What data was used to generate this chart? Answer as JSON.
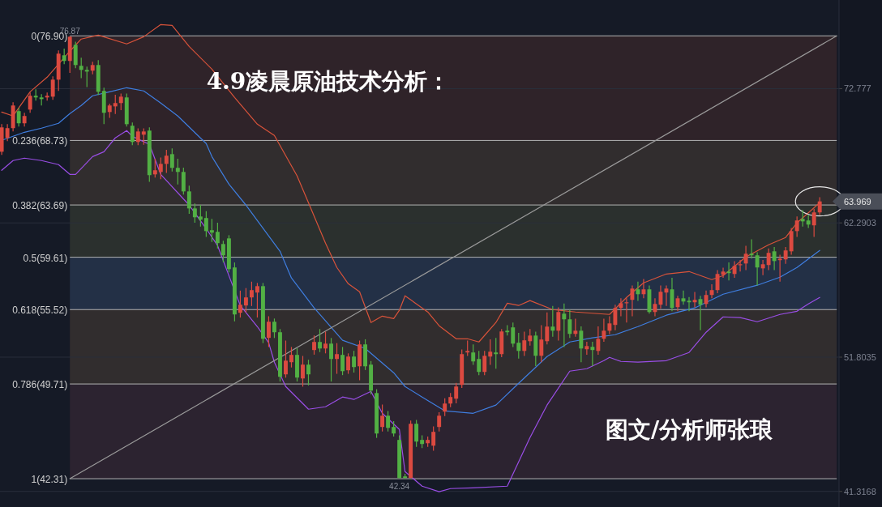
{
  "chart_data": {
    "type": "candlestick",
    "title": "4.9凌晨原油技术分析：",
    "categories": [
      null,
      null,
      null,
      null,
      null,
      null,
      null,
      null,
      null,
      null,
      null,
      null,
      null,
      null,
      null,
      null,
      null,
      null,
      null,
      null,
      null,
      null,
      null,
      null,
      null,
      null,
      null,
      null,
      null,
      null,
      null,
      null,
      null,
      null,
      null,
      null,
      null,
      null,
      null,
      null,
      null,
      null,
      null,
      null,
      null,
      null,
      null,
      null,
      null,
      null,
      null,
      null,
      null,
      null,
      null,
      null,
      null,
      null,
      null,
      null,
      null,
      null,
      null,
      null,
      null,
      null,
      null,
      null,
      null,
      null,
      null,
      null,
      null,
      null,
      null,
      null,
      null,
      null,
      null,
      null,
      null,
      null,
      null,
      null,
      null,
      null,
      null,
      null,
      null,
      null,
      null,
      null,
      null,
      null,
      null,
      null,
      null,
      null,
      null,
      null,
      null,
      null,
      null,
      null,
      null,
      null,
      null,
      null,
      null,
      null,
      null,
      null,
      null,
      null,
      null,
      null,
      null,
      null,
      null,
      null,
      null,
      null,
      null,
      null,
      null,
      null,
      null,
      null,
      null,
      null,
      null,
      null,
      null,
      null,
      null,
      null,
      null,
      null,
      null,
      null,
      null,
      null,
      null,
      null,
      null,
      null,
      null,
      null
    ],
    "ohlc": [
      [
        67.85,
        70.0,
        67.6,
        69.75
      ],
      [
        68.93,
        70.0,
        68.68,
        69.69
      ],
      [
        69.69,
        71.71,
        69.44,
        71.46
      ],
      [
        71.02,
        71.27,
        69.82,
        70.07
      ],
      [
        70.07,
        70.89,
        69.82,
        70.64
      ],
      [
        71.14,
        72.47,
        70.89,
        72.22
      ],
      [
        72.22,
        72.72,
        71.84,
        72.09
      ],
      [
        72.09,
        72.34,
        71.46,
        71.96
      ],
      [
        72.09,
        72.47,
        71.84,
        72.22
      ],
      [
        72.15,
        73.73,
        71.9,
        73.48
      ],
      [
        73.48,
        75.76,
        72.6,
        75.51
      ],
      [
        75.38,
        75.9,
        74.69,
        74.94
      ],
      [
        74.94,
        76.87,
        74.0,
        76.83
      ],
      [
        76.2,
        76.45,
        74.37,
        74.62
      ],
      [
        74.56,
        75.2,
        73.6,
        74.24
      ],
      [
        74.24,
        74.5,
        72.9,
        74.11
      ],
      [
        74.18,
        74.87,
        73.9,
        74.62
      ],
      [
        74.62,
        75.0,
        72.28,
        72.53
      ],
      [
        72.6,
        72.85,
        70.0,
        70.89
      ],
      [
        70.95,
        71.6,
        70.5,
        71.46
      ],
      [
        71.39,
        72.3,
        70.8,
        71.65
      ],
      [
        71.65,
        72.4,
        71.1,
        72.15
      ],
      [
        72.09,
        72.4,
        69.82,
        70.0
      ],
      [
        69.88,
        70.13,
        68.36,
        68.61
      ],
      [
        68.61,
        69.68,
        68.36,
        69.43
      ],
      [
        69.18,
        69.68,
        68.4,
        69.43
      ],
      [
        69.5,
        69.75,
        65.5,
        66.02
      ],
      [
        66.08,
        67.3,
        65.83,
        66.4
      ],
      [
        66.27,
        67.4,
        65.7,
        66.9
      ],
      [
        66.9,
        68.0,
        66.2,
        67.54
      ],
      [
        67.66,
        68.1,
        66.3,
        66.59
      ],
      [
        66.59,
        67.3,
        65.3,
        66.27
      ],
      [
        66.27,
        66.6,
        64.5,
        64.75
      ],
      [
        64.75,
        65.2,
        63.0,
        63.42
      ],
      [
        63.42,
        63.8,
        62.3,
        62.73
      ],
      [
        62.79,
        63.7,
        62.0,
        62.54
      ],
      [
        62.67,
        63.2,
        61.2,
        61.65
      ],
      [
        61.72,
        62.6,
        60.8,
        61.53
      ],
      [
        61.59,
        62.3,
        60.3,
        60.71
      ],
      [
        60.64,
        60.89,
        59.2,
        59.76
      ],
      [
        61.08,
        61.33,
        58.43,
        58.68
      ],
      [
        58.81,
        59.2,
        54.6,
        55.14
      ],
      [
        55.27,
        57.0,
        54.9,
        55.9
      ],
      [
        55.84,
        57.2,
        55.3,
        56.47
      ],
      [
        56.47,
        57.7,
        55.8,
        57.04
      ],
      [
        56.85,
        57.6,
        54.9,
        57.35
      ],
      [
        57.35,
        57.6,
        52.9,
        53.24
      ],
      [
        53.31,
        55.0,
        52.6,
        54.57
      ],
      [
        54.57,
        54.82,
        53.3,
        53.75
      ],
      [
        53.75,
        54.0,
        49.9,
        50.27
      ],
      [
        50.46,
        53.1,
        50.2,
        51.53
      ],
      [
        51.41,
        52.6,
        51.0,
        51.98
      ],
      [
        51.98,
        52.5,
        49.9,
        50.21
      ],
      [
        50.14,
        51.9,
        49.5,
        51.22
      ],
      [
        51.22,
        51.6,
        49.6,
        50.46
      ],
      [
        52.36,
        53.5,
        52.0,
        52.99
      ],
      [
        52.99,
        54.0,
        52.2,
        52.48
      ],
      [
        52.48,
        53.8,
        52.1,
        52.86
      ],
      [
        52.86,
        53.3,
        49.9,
        51.66
      ],
      [
        51.66,
        52.9,
        50.5,
        52.04
      ],
      [
        51.98,
        52.6,
        50.4,
        50.71
      ],
      [
        50.78,
        52.1,
        50.5,
        51.85
      ],
      [
        51.85,
        52.3,
        50.6,
        51.03
      ],
      [
        51.09,
        53.1,
        50.0,
        52.8
      ],
      [
        52.8,
        53.2,
        50.8,
        51.09
      ],
      [
        51.22,
        51.5,
        48.9,
        49.19
      ],
      [
        49.0,
        49.3,
        45.5,
        45.84
      ],
      [
        46.35,
        48.1,
        46.0,
        47.23
      ],
      [
        47.23,
        47.6,
        46.0,
        46.28
      ],
      [
        46.35,
        46.8,
        45.6,
        45.84
      ],
      [
        45.34,
        45.7,
        42.34,
        42.36
      ],
      [
        42.49,
        42.7,
        42.36,
        42.36
      ],
      [
        42.36,
        46.85,
        42.36,
        46.6
      ],
      [
        46.6,
        46.9,
        44.8,
        45.21
      ],
      [
        45.34,
        45.7,
        44.7,
        45.02
      ],
      [
        45.08,
        45.6,
        44.8,
        45.34
      ],
      [
        44.89,
        46.4,
        44.5,
        45.97
      ],
      [
        46.35,
        47.5,
        46.0,
        47.23
      ],
      [
        47.55,
        48.6,
        47.2,
        48.18
      ],
      [
        48.18,
        49.0,
        47.9,
        48.69
      ],
      [
        48.56,
        49.8,
        48.2,
        49.51
      ],
      [
        49.64,
        52.4,
        49.4,
        52.04
      ],
      [
        52.17,
        53.1,
        51.9,
        52.29
      ],
      [
        52.17,
        52.8,
        51.2,
        51.47
      ],
      [
        51.66,
        52.3,
        50.4,
        50.65
      ],
      [
        50.65,
        52.3,
        50.4,
        51.91
      ],
      [
        51.85,
        53.2,
        51.2,
        52.23
      ],
      [
        52.17,
        53.3,
        50.9,
        52.04
      ],
      [
        52.04,
        54.0,
        51.8,
        53.81
      ],
      [
        53.87,
        54.3,
        53.5,
        53.75
      ],
      [
        54.13,
        54.5,
        52.6,
        52.86
      ],
      [
        52.93,
        53.7,
        51.7,
        52.29
      ],
      [
        52.29,
        53.8,
        51.9,
        53.12
      ],
      [
        53.05,
        54.0,
        52.7,
        53.49
      ],
      [
        53.49,
        53.8,
        51.1,
        51.91
      ],
      [
        51.91,
        54.3,
        51.4,
        53.18
      ],
      [
        53.05,
        55.3,
        52.8,
        54.19
      ],
      [
        54.19,
        55.8,
        53.4,
        53.87
      ],
      [
        53.87,
        55.7,
        53.1,
        55.33
      ],
      [
        55.2,
        56.0,
        52.6,
        54.76
      ],
      [
        54.76,
        55.5,
        53.3,
        53.62
      ],
      [
        53.62,
        54.8,
        53.4,
        53.87
      ],
      [
        53.87,
        54.2,
        51.4,
        52.48
      ],
      [
        52.42,
        53.0,
        52.0,
        52.67
      ],
      [
        52.61,
        53.0,
        51.1,
        52.36
      ],
      [
        52.29,
        54.2,
        52.0,
        53.24
      ],
      [
        53.24,
        54.8,
        53.0,
        53.87
      ],
      [
        53.87,
        55.0,
        53.6,
        54.44
      ],
      [
        54.32,
        55.9,
        53.9,
        55.65
      ],
      [
        55.65,
        56.4,
        55.0,
        56.02
      ],
      [
        56.02,
        56.4,
        54.5,
        56.09
      ],
      [
        56.28,
        57.4,
        55.0,
        57.16
      ],
      [
        57.1,
        57.7,
        56.2,
        56.72
      ],
      [
        56.72,
        57.9,
        56.4,
        57.1
      ],
      [
        57.1,
        57.4,
        55.2,
        55.33
      ],
      [
        55.33,
        56.4,
        55.0,
        55.96
      ],
      [
        55.9,
        57.4,
        55.6,
        56.91
      ],
      [
        56.85,
        57.4,
        55.8,
        57.16
      ],
      [
        57.1,
        58.0,
        55.4,
        55.65
      ],
      [
        55.71,
        56.6,
        55.4,
        56.4
      ],
      [
        56.4,
        57.0,
        55.9,
        56.15
      ],
      [
        56.21,
        56.5,
        55.4,
        56.09
      ],
      [
        56.09,
        56.9,
        55.7,
        56.28
      ],
      [
        56.34,
        56.6,
        53.9,
        55.9
      ],
      [
        55.96,
        57.0,
        55.7,
        56.66
      ],
      [
        56.66,
        57.5,
        56.4,
        57.04
      ],
      [
        57.04,
        58.6,
        56.8,
        58.3
      ],
      [
        58.24,
        58.8,
        58.0,
        58.49
      ],
      [
        58.49,
        59.2,
        57.8,
        58.37
      ],
      [
        58.3,
        59.3,
        58.0,
        58.93
      ],
      [
        59.0,
        59.4,
        58.5,
        59.06
      ],
      [
        59.12,
        60.5,
        58.6,
        59.88
      ],
      [
        59.88,
        61.0,
        59.5,
        59.76
      ],
      [
        59.76,
        60.0,
        57.4,
        58.81
      ],
      [
        58.74,
        59.4,
        58.2,
        59.06
      ],
      [
        59.0,
        60.3,
        58.6,
        59.95
      ],
      [
        60.07,
        60.4,
        58.6,
        59.31
      ],
      [
        59.38,
        59.8,
        57.7,
        59.5
      ],
      [
        59.44,
        60.4,
        59.1,
        60.14
      ],
      [
        60.07,
        61.9,
        59.8,
        61.65
      ],
      [
        61.65,
        62.8,
        61.2,
        62.48
      ],
      [
        62.6,
        63.3,
        62.0,
        62.41
      ],
      [
        62.48,
        62.9,
        61.9,
        62.16
      ],
      [
        62.1,
        63.4,
        61.2,
        63.11
      ],
      [
        63.11,
        64.3,
        62.9,
        63.969
      ],
      null,
      null,
      null
    ],
    "colors": [
      "#dc4a40",
      "#dc4a40",
      "#dc4a40",
      "#52b044",
      "#dc4a40",
      "#dc4a40",
      "#52b044",
      "#52b044",
      "#dc4a40",
      "#dc4a40",
      "#dc4a40",
      "#52b044",
      "#dc4a40",
      "#52b044",
      "#52b044",
      "#52b044",
      "#dc4a40",
      "#52b044",
      "#52b044",
      "#dc4a40",
      "#dc4a40",
      "#dc4a40",
      "#52b044",
      "#52b044",
      "#dc4a40",
      "#dc4a40",
      "#52b044",
      "#dc4a40",
      "#dc4a40",
      "#dc4a40",
      "#52b044",
      "#52b044",
      "#52b044",
      "#52b044",
      "#52b044",
      "#52b044",
      "#52b044",
      "#52b044",
      "#52b044",
      "#52b044",
      "#52b044",
      "#52b044",
      "#dc4a40",
      "#dc4a40",
      "#dc4a40",
      "#dc4a40",
      "#52b044",
      "#dc4a40",
      "#52b044",
      "#52b044",
      "#dc4a40",
      "#dc4a40",
      "#52b044",
      "#dc4a40",
      "#52b044",
      "#dc4a40",
      "#52b044",
      "#dc4a40",
      "#52b044",
      "#dc4a40",
      "#52b044",
      "#dc4a40",
      "#52b044",
      "#dc4a40",
      "#52b044",
      "#52b044",
      "#52b044",
      "#dc4a40",
      "#52b044",
      "#52b044",
      "#52b044",
      "#52b044",
      "#dc4a40",
      "#52b044",
      "#52b044",
      "#dc4a40",
      "#dc4a40",
      "#dc4a40",
      "#dc4a40",
      "#dc4a40",
      "#dc4a40",
      "#dc4a40",
      "#dc4a40",
      "#52b044",
      "#52b044",
      "#dc4a40",
      "#dc4a40",
      "#52b044",
      "#dc4a40",
      "#52b044",
      "#52b044",
      "#52b044",
      "#dc4a40",
      "#dc4a40",
      "#52b044",
      "#dc4a40",
      "#dc4a40",
      "#52b044",
      "#dc4a40",
      "#52b044",
      "#52b044",
      "#dc4a40",
      "#52b044",
      "#dc4a40",
      "#52b044",
      "#dc4a40",
      "#dc4a40",
      "#dc4a40",
      "#dc4a40",
      "#dc4a40",
      "#dc4a40",
      "#dc4a40",
      "#52b044",
      "#dc4a40",
      "#52b044",
      "#dc4a40",
      "#dc4a40",
      "#dc4a40",
      "#52b044",
      "#dc4a40",
      "#52b044",
      "#52b044",
      "#dc4a40",
      "#52b044",
      "#dc4a40",
      "#dc4a40",
      "#dc4a40",
      "#dc4a40",
      "#52b044",
      "#dc4a40",
      "#dc4a40",
      "#dc4a40",
      "#52b044",
      "#52b044",
      "#dc4a40",
      "#dc4a40",
      "#52b044",
      "#dc4a40",
      "#dc4a40",
      "#dc4a40",
      "#dc4a40",
      "#52b044",
      "#52b044",
      "#dc4a40",
      "#dc4a40",
      null,
      null,
      null
    ],
    "series": [
      {
        "type": "line",
        "color": "#d9533a",
        "values": [
          70.95,
          null,
          70.64,
          null,
          null,
          72.53,
          null,
          null,
          73.67,
          null,
          null,
          null,
          75.7,
          null,
          76.65,
          null,
          null,
          76.96,
          null,
          null,
          null,
          null,
          76.27,
          null,
          null,
          76.83,
          null,
          null,
          77.78,
          null,
          77.72,
          null,
          null,
          76.07,
          null,
          null,
          null,
          74.3,
          null,
          null,
          null,
          72.09,
          null,
          null,
          null,
          70.0,
          null,
          null,
          69.12,
          null,
          null,
          null,
          65.96,
          null,
          63.87,
          null,
          null,
          60.71,
          null,
          58.81,
          null,
          57.54,
          null,
          56.91,
          null,
          54.51,
          null,
          55.01,
          null,
          54.82,
          55.46,
          56.6,
          null,
          null,
          null,
          55.33,
          null,
          54.26,
          null,
          null,
          53.24,
          null,
          53.24,
          null,
          52.99,
          null,
          null,
          54.51,
          null,
          56.02,
          null,
          55.84,
          null,
          56.22,
          null,
          null,
          null,
          55.52,
          null,
          null,
          null,
          55.33,
          null,
          null,
          null,
          null,
          null,
          55.14,
          null,
          null,
          56.47,
          null,
          null,
          57.61,
          null,
          null,
          null,
          58.3,
          null,
          null,
          null,
          58.49,
          null,
          null,
          null,
          57.86,
          null,
          58.18,
          null,
          null,
          null,
          59.63,
          null,
          null,
          null,
          60.58,
          null,
          null,
          61.15,
          null,
          62.29,
          null,
          null,
          null,
          63.87,
          null,
          null,
          null
        ]
      },
      {
        "type": "line",
        "color": "#3f7ee0",
        "values": [
          68.74,
          null,
          null,
          null,
          69.37,
          null,
          null,
          69.69,
          null,
          null,
          70.07,
          null,
          70.83,
          null,
          71.46,
          null,
          72.22,
          null,
          null,
          72.53,
          null,
          null,
          72.85,
          null,
          null,
          72.6,
          null,
          null,
          71.65,
          null,
          null,
          70.64,
          null,
          null,
          null,
          null,
          68.49,
          67.47,
          null,
          null,
          65.32,
          null,
          null,
          63.68,
          null,
          null,
          null,
          null,
          null,
          60.07,
          null,
          57.99,
          null,
          null,
          null,
          55.65,
          null,
          null,
          null,
          null,
          53.12,
          null,
          null,
          null,
          52.48,
          null,
          null,
          null,
          null,
          50.59,
          null,
          49.51,
          null,
          null,
          48.69,
          null,
          null,
          null,
          47.61,
          null,
          null,
          null,
          null,
          47.42,
          null,
          null,
          null,
          48.06,
          null,
          null,
          null,
          49.76,
          null,
          null,
          null,
          null,
          51.85,
          null,
          null,
          null,
          52.99,
          null,
          null,
          null,
          53.31,
          null,
          null,
          null,
          53.56,
          null,
          null,
          null,
          54.19,
          null,
          null,
          null,
          null,
          55.08,
          null,
          null,
          null,
          null,
          55.65,
          null,
          null,
          null,
          null,
          56.72,
          null,
          null,
          null,
          null,
          null,
          57.42,
          null,
          null,
          null,
          58.05,
          null,
          null,
          58.81,
          null,
          null,
          null,
          60.14,
          null,
          null,
          null
        ]
      },
      {
        "type": "line",
        "color": "#9a4ee6",
        "values": [
          66.4,
          null,
          67.16,
          null,
          67.35,
          null,
          null,
          67.16,
          null,
          null,
          66.84,
          null,
          66.08,
          66.08,
          null,
          null,
          67.47,
          null,
          67.85,
          null,
          68.93,
          null,
          69.5,
          69.05,
          null,
          null,
          68.42,
          null,
          66.08,
          null,
          null,
          null,
          null,
          63.68,
          null,
          null,
          61.84,
          null,
          60.52,
          null,
          58.17,
          null,
          55.84,
          null,
          null,
          54.19,
          null,
          52.93,
          51.41,
          null,
          49.51,
          null,
          null,
          null,
          47.74,
          null,
          null,
          47.93,
          null,
          null,
          48.69,
          null,
          48.5,
          null,
          null,
          49.13,
          null,
          47.42,
          null,
          null,
          46.16,
          42.87,
          null,
          null,
          41.73,
          null,
          null,
          41.29,
          null,
          41.54,
          null,
          null,
          null,
          41.6,
          null,
          null,
          null,
          null,
          null,
          41.73,
          42.68,
          null,
          null,
          45.53,
          null,
          null,
          48.06,
          null,
          null,
          null,
          50.71,
          null,
          null,
          50.9,
          null,
          null,
          51.53,
          51.79,
          null,
          51.47,
          null,
          null,
          51.41,
          null,
          null,
          null,
          null,
          51.53,
          null,
          null,
          null,
          52.17,
          null,
          null,
          53.75,
          null,
          null,
          54.95,
          null,
          null,
          54.89,
          null,
          null,
          54.57,
          null,
          null,
          null,
          55.14,
          null,
          null,
          55.39,
          null,
          55.96,
          null,
          56.47,
          null,
          null,
          null
        ]
      },
      {
        "type": "line",
        "color": "#9a9a9a",
        "values": [
          null,
          null,
          null,
          null,
          null,
          null,
          null,
          null,
          null,
          null,
          null,
          null,
          42.31,
          null,
          null,
          null,
          null,
          null,
          null,
          null,
          null,
          null,
          null,
          null,
          null,
          null,
          null,
          null,
          null,
          null,
          null,
          null,
          null,
          null,
          null,
          null,
          null,
          null,
          null,
          null,
          null,
          null,
          null,
          null,
          null,
          null,
          null,
          null,
          null,
          null,
          null,
          null,
          null,
          null,
          null,
          null,
          null,
          null,
          null,
          null,
          null,
          null,
          null,
          null,
          null,
          null,
          null,
          null,
          null,
          null,
          null,
          null,
          null,
          null,
          null,
          null,
          null,
          null,
          null,
          null,
          null,
          null,
          null,
          null,
          null,
          null,
          null,
          null,
          null,
          null,
          null,
          null,
          null,
          null,
          null,
          null,
          null,
          null,
          null,
          null,
          null,
          null,
          null,
          null,
          null,
          null,
          null,
          null,
          null,
          null,
          null,
          null,
          null,
          null,
          null,
          null,
          null,
          null,
          null,
          null,
          null,
          null,
          null,
          null,
          null,
          null,
          null,
          null,
          null,
          null,
          null,
          null,
          null,
          null,
          null,
          null,
          null,
          null,
          null,
          null,
          null,
          null,
          null,
          null,
          null,
          null,
          null,
          76.9
        ]
      }
    ],
    "ylim": [
      40.1,
      79.7
    ],
    "yticks": [
      72.777,
      62.2903,
      51.8035,
      41.3168
    ],
    "tick_labels": "y",
    "grid": "y",
    "ref_lines": [
      {
        "axis": "y",
        "value": 76.9,
        "label": "0(76.90)",
        "color": "#b4b4b4"
      },
      {
        "axis": "y",
        "value": 68.73,
        "label": "0.236(68.73)",
        "color": "#b4b4b4"
      },
      {
        "axis": "y",
        "value": 63.69,
        "label": "0.382(63.69)",
        "color": "#b4b4b4"
      },
      {
        "axis": "y",
        "value": 59.61,
        "label": "0.5(59.61)",
        "color": "#b4b4b4"
      },
      {
        "axis": "y",
        "value": 55.52,
        "label": "0.618(55.52)",
        "color": "#b4b4b4"
      },
      {
        "axis": "y",
        "value": 49.71,
        "label": "0.786(49.71)",
        "color": "#b4b4b4"
      },
      {
        "axis": "y",
        "value": 42.31,
        "label": "1(42.31)",
        "color": "#b4b4b4"
      }
    ],
    "bands": [
      {
        "axis": "y",
        "from": 68.73,
        "to": 76.9,
        "color": "#2f2329"
      },
      {
        "axis": "y",
        "from": 63.69,
        "to": 68.73,
        "color": "#312d2e"
      },
      {
        "axis": "y",
        "from": 59.61,
        "to": 63.69,
        "color": "#2b302e"
      },
      {
        "axis": "y",
        "from": 55.52,
        "to": 59.61,
        "color": "#233046"
      },
      {
        "axis": "y",
        "from": 49.71,
        "to": 55.52,
        "color": "#312d2e"
      },
      {
        "axis": "y",
        "from": 42.31,
        "to": 49.71,
        "color": "#2c2330"
      }
    ],
    "annotations": [
      {
        "text": "76.87",
        "y": 76.87
      },
      {
        "text": "42.34",
        "y": 42.34
      },
      "63.969",
      "图文/分析师张琅"
    ]
  }
}
